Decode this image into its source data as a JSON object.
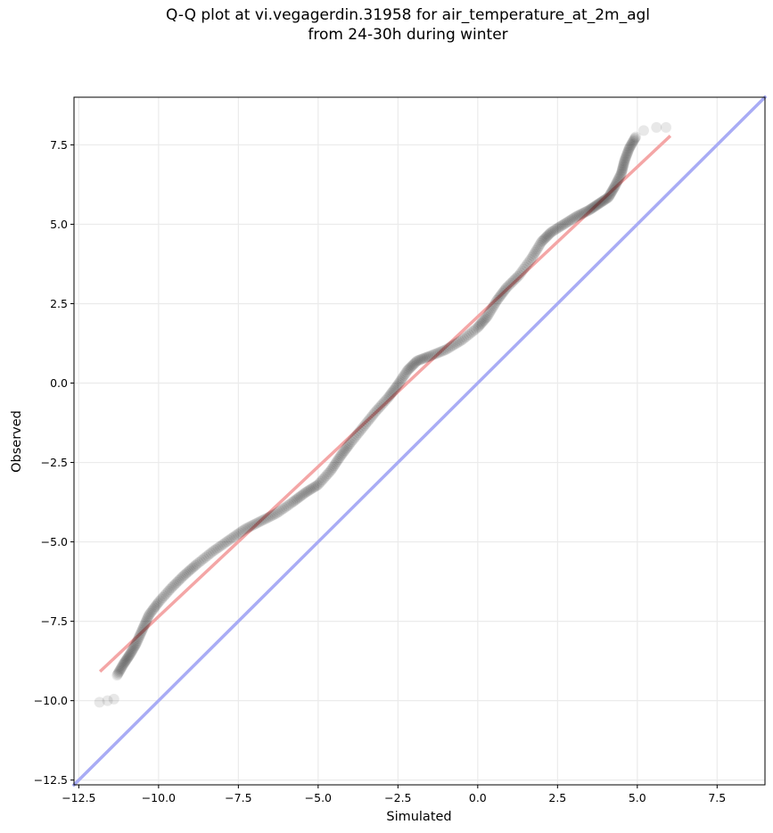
{
  "chart_data": {
    "type": "scatter",
    "title": [
      "Q-Q plot at vi.vegagerdin.31958 for air_temperature_at_2m_agl",
      "from 24-30h during winter"
    ],
    "xlabel": "Simulated",
    "ylabel": "Observed",
    "xlim": [
      -12.65,
      9.0
    ],
    "ylim": [
      -12.65,
      9.0
    ],
    "xticks": [
      "−12.5",
      "−10.0",
      "−7.5",
      "−5.0",
      "−2.5",
      "0.0",
      "2.5",
      "5.0",
      "7.5"
    ],
    "yticks": [
      "−12.5",
      "−10.0",
      "−7.5",
      "−5.0",
      "−2.5",
      "0.0",
      "2.5",
      "5.0",
      "7.5"
    ],
    "grid": true,
    "colors": {
      "points": "#000000",
      "fit_line": "#f4a6a6",
      "identity_line": "#a9acf5",
      "grid": "#ebebeb"
    },
    "quantile_curve": [
      [
        -11.85,
        -10.05
      ],
      [
        -11.6,
        -10.0
      ],
      [
        -11.4,
        -9.95
      ],
      [
        -11.3,
        -9.2
      ],
      [
        -11.1,
        -8.85
      ],
      [
        -10.9,
        -8.55
      ],
      [
        -10.7,
        -8.2
      ],
      [
        -10.5,
        -7.75
      ],
      [
        -10.3,
        -7.3
      ],
      [
        -10.0,
        -6.9
      ],
      [
        -9.6,
        -6.45
      ],
      [
        -9.2,
        -6.05
      ],
      [
        -8.8,
        -5.7
      ],
      [
        -8.3,
        -5.3
      ],
      [
        -7.8,
        -4.95
      ],
      [
        -7.3,
        -4.6
      ],
      [
        -6.8,
        -4.35
      ],
      [
        -6.3,
        -4.1
      ],
      [
        -5.8,
        -3.75
      ],
      [
        -5.4,
        -3.45
      ],
      [
        -5.0,
        -3.2
      ],
      [
        -4.6,
        -2.75
      ],
      [
        -4.3,
        -2.3
      ],
      [
        -4.0,
        -1.9
      ],
      [
        -3.6,
        -1.4
      ],
      [
        -3.2,
        -0.9
      ],
      [
        -2.8,
        -0.45
      ],
      [
        -2.5,
        -0.05
      ],
      [
        -2.2,
        0.4
      ],
      [
        -1.9,
        0.7
      ],
      [
        -1.5,
        0.85
      ],
      [
        -1.0,
        1.05
      ],
      [
        -0.5,
        1.35
      ],
      [
        0.0,
        1.75
      ],
      [
        0.3,
        2.1
      ],
      [
        0.6,
        2.6
      ],
      [
        0.9,
        3.0
      ],
      [
        1.3,
        3.4
      ],
      [
        1.7,
        3.95
      ],
      [
        2.0,
        4.45
      ],
      [
        2.3,
        4.75
      ],
      [
        2.7,
        5.0
      ],
      [
        3.1,
        5.25
      ],
      [
        3.5,
        5.45
      ],
      [
        3.8,
        5.65
      ],
      [
        4.1,
        5.85
      ],
      [
        4.3,
        6.2
      ],
      [
        4.5,
        6.6
      ],
      [
        4.6,
        7.0
      ],
      [
        4.75,
        7.4
      ],
      [
        4.95,
        7.75
      ],
      [
        5.2,
        7.95
      ],
      [
        5.6,
        8.05
      ],
      [
        5.9,
        8.05
      ]
    ],
    "fit_line": {
      "x": [
        -11.8,
        6.0
      ],
      "y": [
        -9.05,
        7.75
      ]
    },
    "identity_line": {
      "x": [
        -12.65,
        9.0
      ],
      "y": [
        -12.65,
        9.0
      ]
    }
  }
}
